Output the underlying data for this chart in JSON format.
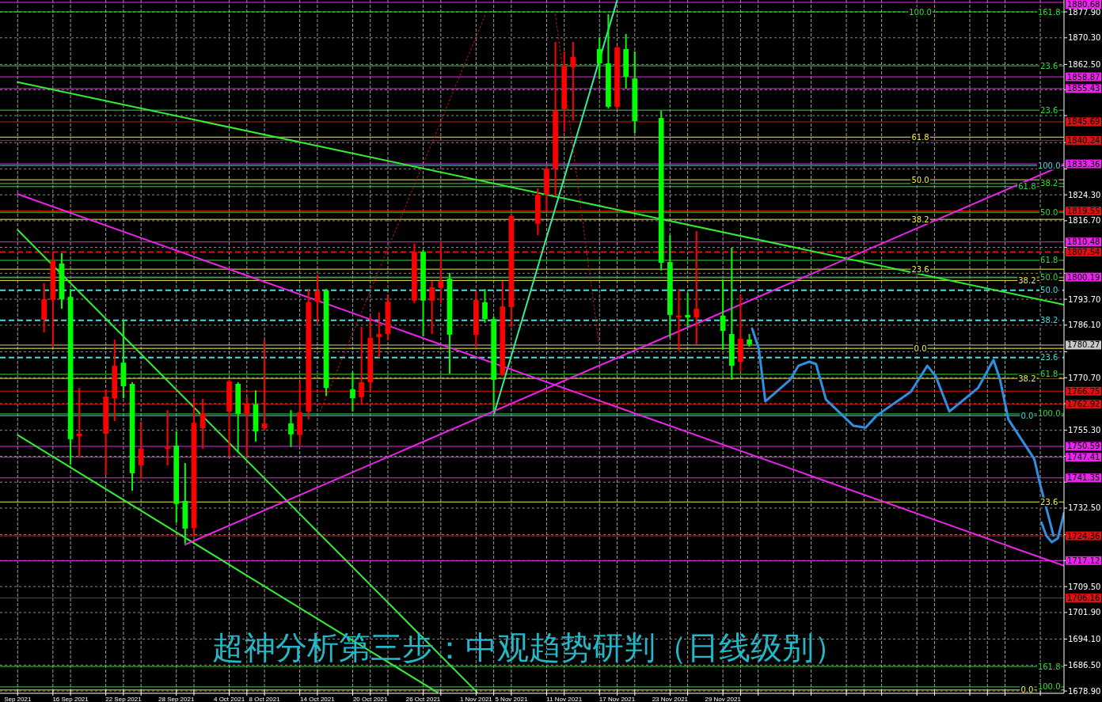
{
  "chart_data": {
    "type": "candlestick",
    "title": "超神分析第三步：中观趋势研判（日线级别）",
    "x": [
      "2021-09-13",
      "2021-09-14",
      "2021-09-15",
      "2021-09-16",
      "2021-09-17",
      "2021-09-20",
      "2021-09-21",
      "2021-09-22",
      "2021-09-23",
      "2021-09-24",
      "2021-09-27",
      "2021-09-28",
      "2021-09-29",
      "2021-09-30",
      "2021-10-01",
      "2021-10-04",
      "2021-10-05",
      "2021-10-06",
      "2021-10-07",
      "2021-10-08",
      "2021-10-11",
      "2021-10-12",
      "2021-10-13",
      "2021-10-14",
      "2021-10-15",
      "2021-10-18",
      "2021-10-19",
      "2021-10-20",
      "2021-10-21",
      "2021-10-22",
      "2021-10-25",
      "2021-10-26",
      "2021-10-27",
      "2021-10-28",
      "2021-10-29",
      "2021-11-01",
      "2021-11-02",
      "2021-11-03",
      "2021-11-04",
      "2021-11-05",
      "2021-11-08",
      "2021-11-09",
      "2021-11-10",
      "2021-11-11",
      "2021-11-12",
      "2021-11-15",
      "2021-11-16",
      "2021-11-17",
      "2021-11-18",
      "2021-11-19",
      "2021-11-22",
      "2021-11-23",
      "2021-11-24",
      "2021-11-25",
      "2021-11-26",
      "2021-11-29",
      "2021-11-30",
      "2021-12-01",
      "2021-12-02"
    ],
    "ohlc": [
      [
        1787.7,
        1798.4,
        1784.0,
        1793.7
      ],
      [
        1793.5,
        1807.2,
        1779.8,
        1804.9
      ],
      [
        1804.2,
        1807.2,
        1790.9,
        1793.7
      ],
      [
        1794.4,
        1796.7,
        1745.2,
        1752.7
      ],
      [
        1753.6,
        1767.7,
        1747.6,
        1754.3
      ],
      [
        1754.3,
        1767.3,
        1742.2,
        1765.2
      ],
      [
        1764.7,
        1781.9,
        1758.0,
        1774.2
      ],
      [
        1775.1,
        1787.5,
        1764.7,
        1768.2
      ],
      [
        1768.9,
        1769.4,
        1737.6,
        1742.7
      ],
      [
        1745.0,
        1757.8,
        1741.1,
        1749.9
      ],
      [
        1749.9,
        1761.2,
        1745.0,
        1750.4
      ],
      [
        1750.8,
        1755.0,
        1728.3,
        1733.7
      ],
      [
        1734.6,
        1745.7,
        1722.1,
        1726.5
      ],
      [
        1726.7,
        1764.7,
        1724.4,
        1757.5
      ],
      [
        1755.9,
        1764.5,
        1749.9,
        1760.3
      ],
      [
        1760.8,
        1770.1,
        1747.6,
        1769.6
      ],
      [
        1768.9,
        1769.4,
        1748.7,
        1760.1
      ],
      [
        1760.1,
        1765.0,
        1747.6,
        1763.1
      ],
      [
        1762.9,
        1767.0,
        1752.0,
        1755.0
      ],
      [
        1755.9,
        1781.7,
        1755.5,
        1757.3
      ],
      [
        1757.3,
        1761.2,
        1750.4,
        1754.1
      ],
      [
        1753.9,
        1769.6,
        1750.8,
        1760.6
      ],
      [
        1760.8,
        1796.7,
        1758.5,
        1792.8
      ],
      [
        1793.0,
        1800.9,
        1786.8,
        1796.3
      ],
      [
        1796.3,
        1796.7,
        1765.4,
        1767.7
      ],
      [
        1767.3,
        1772.4,
        1760.8,
        1764.7
      ],
      [
        1765.0,
        1785.6,
        1763.1,
        1769.4
      ],
      [
        1769.4,
        1788.6,
        1767.0,
        1782.4
      ],
      [
        1782.6,
        1789.8,
        1776.6,
        1783.5
      ],
      [
        1783.5,
        1795.1,
        1781.7,
        1793.0
      ],
      [
        1793.3,
        1810.0,
        1792.6,
        1807.6
      ],
      [
        1807.6,
        1808.1,
        1782.8,
        1793.3
      ],
      [
        1793.3,
        1799.0,
        1783.5,
        1797.2
      ],
      [
        1797.0,
        1810.6,
        1792.6,
        1799.0
      ],
      [
        1799.7,
        1801.4,
        1771.9,
        1783.3
      ],
      [
        1783.3,
        1796.0,
        1779.3,
        1793.5
      ],
      [
        1792.8,
        1796.7,
        1786.8,
        1787.9
      ],
      [
        1787.9,
        1788.6,
        1760.8,
        1770.1
      ],
      [
        1771.7,
        1799.0,
        1771.2,
        1791.6
      ],
      [
        1791.4,
        1818.3,
        1785.6,
        1818.1
      ],
      [
        1815.8,
        1826.2,
        1812.5,
        1824.3
      ],
      [
        1824.3,
        1832.7,
        1819.5,
        1832.0
      ],
      [
        1832.0,
        1869.1,
        1823.9,
        1848.9
      ],
      [
        1849.4,
        1866.3,
        1842.7,
        1862.1
      ],
      [
        1861.7,
        1869.1,
        1846.1,
        1864.7
      ],
      [
        1867.0,
        1870.5,
        1858.2,
        1862.8
      ],
      [
        1862.8,
        1877.2,
        1849.6,
        1850.1
      ],
      [
        1850.1,
        1867.9,
        1849.4,
        1867.5
      ],
      [
        1867.0,
        1871.4,
        1855.4,
        1858.9
      ],
      [
        1858.4,
        1866.3,
        1842.4,
        1845.9
      ],
      [
        1846.8,
        1848.9,
        1802.1,
        1804.4
      ],
      [
        1804.6,
        1812.5,
        1782.4,
        1789.1
      ],
      [
        1788.4,
        1796.7,
        1778.6,
        1788.9
      ],
      [
        1789.1,
        1795.6,
        1785.6,
        1788.4
      ],
      [
        1788.4,
        1813.7,
        1780.5,
        1790.9
      ],
      [
        1788.9,
        1799.5,
        1778.9,
        1784.4
      ],
      [
        1783.5,
        1808.8,
        1770.1,
        1774.2
      ],
      [
        1775.4,
        1794.9,
        1772.4,
        1782.1
      ],
      [
        1781.9,
        1783.5,
        1779.8,
        1780.5
      ]
    ],
    "colors": [
      "#ff0000",
      "#ff0000",
      "#00ff00",
      "#00ff00",
      "#ff0000",
      "#ff0000",
      "#ff0000",
      "#00ff00",
      "#00ff00",
      "#ff0000",
      "#ff0000",
      "#00ff00",
      "#00ff00",
      "#ff0000",
      "#ff0000",
      "#ff0000",
      "#00ff00",
      "#ff0000",
      "#00ff00",
      "#ff0000",
      "#00ff00",
      "#ff0000",
      "#ff0000",
      "#ff0000",
      "#00ff00",
      "#00ff00",
      "#ff0000",
      "#ff0000",
      "#ff0000",
      "#ff0000",
      "#ff0000",
      "#00ff00",
      "#ff0000",
      "#ff0000",
      "#00ff00",
      "#ff0000",
      "#00ff00",
      "#00ff00",
      "#ff0000",
      "#ff0000",
      "#ff0000",
      "#ff0000",
      "#ff0000",
      "#ff0000",
      "#ff0000",
      "#00ff00",
      "#00ff00",
      "#ff0000",
      "#00ff00",
      "#00ff00",
      "#00ff00",
      "#00ff00",
      "#ff0000",
      "#00ff00",
      "#ff0000",
      "#00ff00",
      "#00ff00",
      "#ff0000",
      "#00ff00"
    ],
    "series": [
      {
        "type": "line",
        "color": "#33ee33",
        "x": [
          "2021-09-10",
          "2022-01-06T16:30"
        ],
        "values": [
          1857.3,
          1792.1
        ]
      },
      {
        "type": "line",
        "color": "#33ee33",
        "x": [
          "2021-09-10",
          "2021-11-01T03:00"
        ],
        "values": [
          1814.0,
          1678.5
        ]
      },
      {
        "type": "line",
        "color": "#33ee33",
        "x": [
          "2021-09-10",
          "2021-10-27T15:00"
        ],
        "values": [
          1753.9,
          1678.5
        ]
      },
      {
        "type": "line",
        "color": "#33ee99",
        "x": [
          "2021-11-03T01:30",
          "2021-11-17"
        ],
        "values": [
          1760.3,
          1881.3
        ]
      },
      {
        "type": "line",
        "color": "#ee22ee",
        "x": [
          "2021-09-10",
          "2022-01-06T16:30"
        ],
        "values": [
          1824.5,
          1715.6
        ]
      },
      {
        "type": "line",
        "color": "#ee22ee",
        "x": [
          "2021-09-29",
          "2022-01-06T16:30"
        ],
        "values": [
          1721.8,
          1833.1
        ]
      },
      {
        "type": "line",
        "color": "#cc1111",
        "line_style": "dotted",
        "x": [
          "2021-10-14T07:30",
          "2021-11-02T01:30"
        ],
        "values": [
          1760.8,
          1877.2
        ]
      },
      {
        "type": "line",
        "color": "#cc1111",
        "line_style": "dotted",
        "x": [
          "2021-11-10",
          "2021-11-15"
        ],
        "values": [
          1877.2,
          1779.3
        ]
      },
      {
        "type": "line",
        "color": "#2f8fe0",
        "x": [
          "2021-12-02T07:30",
          "2021-12-03T01:30",
          "2021-12-03T19:30",
          "2021-12-06T15:00",
          "2021-12-07T13:30",
          "2021-12-08T19:30",
          "2021-12-09T13:30",
          "2021-12-10T16:30",
          "2021-12-13T19:30",
          "2021-12-15T04:30",
          "2021-12-16T10:30",
          "2021-12-20T07:30",
          "2021-12-22T04:30",
          "2021-12-23T03:00",
          "2021-12-24T16:30",
          "2021-12-27T22:30",
          "2021-12-29T16:30",
          "2021-12-30T10:30",
          "2021-12-31T09:00",
          "2022-01-03T07:30",
          "2022-01-03T22:30",
          "2022-01-04T21:00",
          "2022-01-05T12:00"
        ],
        "values": [
          1785.1,
          1779.3,
          1763.8,
          1770.1,
          1774.2,
          1775.4,
          1774.7,
          1764.3,
          1756.6,
          1756.1,
          1759.6,
          1766.6,
          1774.2,
          1771.2,
          1760.8,
          1767.7,
          1775.9,
          1770.1,
          1758.5,
          1746.9,
          1739.9,
          1730.6,
          1724.4
        ]
      },
      {
        "type": "line",
        "color": "#2f8fe0",
        "x": [
          "2022-01-04T03:00",
          "2022-01-04T16:30",
          "2022-01-05T07:30",
          "2022-01-06",
          "2022-01-06T16:30"
        ],
        "values": [
          1728.3,
          1724.4,
          1722.5,
          1723.7,
          1731.0
        ]
      }
    ],
    "ref_lines": [
      {
        "axis": "y",
        "value": 1880.68,
        "label": "1880.68",
        "color": "#ee22ee"
      },
      {
        "axis": "y",
        "value": 1858.87,
        "label": "1858.87",
        "color": "#ee22ee"
      },
      {
        "axis": "y",
        "value": 1855.43,
        "label": "1855.43",
        "color": "#ee22ee"
      },
      {
        "axis": "y",
        "value": 1845.69,
        "label": "1845.69",
        "color": "#dd1111"
      },
      {
        "axis": "y",
        "value": 1840.24,
        "label": "1840.24",
        "color": "#dd1111"
      },
      {
        "axis": "y",
        "value": 1833.36,
        "label": "1833.36",
        "color": "#ee22ee"
      },
      {
        "axis": "y",
        "value": 1819.55,
        "label": "1819.55",
        "color": "#dd1111"
      },
      {
        "axis": "y",
        "value": 1810.48,
        "label": "1810.48",
        "color": "#ee22ee"
      },
      {
        "axis": "y",
        "value": 1807.54,
        "label": "1807.54",
        "color": "#dd1111",
        "line_style": "dashed"
      },
      {
        "axis": "y",
        "value": 1800.19,
        "label": "1800.19",
        "color": "#ee22ee"
      },
      {
        "axis": "y",
        "value": 1780.27,
        "label": "1780.27",
        "color": "#c8c8c8"
      },
      {
        "axis": "y",
        "value": 1766.75,
        "label": "1766.75",
        "color": "#dd1111"
      },
      {
        "axis": "y",
        "value": 1762.92,
        "label": "1762.92",
        "color": "#dd1111"
      },
      {
        "axis": "y",
        "value": 1750.59,
        "label": "1750.59",
        "color": "#ee22ee"
      },
      {
        "axis": "y",
        "value": 1747.41,
        "label": "1747.41",
        "color": "#ee22ee"
      },
      {
        "axis": "y",
        "value": 1741.35,
        "label": "1741.35",
        "color": "#ee22ee"
      },
      {
        "axis": "y",
        "value": 1724.36,
        "label": "1724.36",
        "color": "#dd1111"
      },
      {
        "axis": "y",
        "value": 1717.12,
        "label": "1717.12",
        "color": "#ee22ee"
      },
      {
        "axis": "y",
        "value": 1706.16,
        "label": "1706.16",
        "color": "#dd1111"
      },
      {
        "axis": "y",
        "value": 1877.9,
        "color": "#33dd33"
      },
      {
        "axis": "y",
        "value": 1862.1,
        "color": "#33dd33"
      },
      {
        "axis": "y",
        "value": 1849.1,
        "color": "#33dd33"
      },
      {
        "axis": "y",
        "value": 1841.2,
        "color": "#eeee44"
      },
      {
        "axis": "y",
        "value": 1832.9,
        "color": "#44dddd"
      },
      {
        "axis": "y",
        "value": 1828.7,
        "color": "#eeee44"
      },
      {
        "axis": "y",
        "value": 1827.6,
        "color": "#33dd33"
      },
      {
        "axis": "y",
        "value": 1826.7,
        "color": "#33dd33"
      },
      {
        "axis": "y",
        "value": 1819.2,
        "color": "#33dd33"
      },
      {
        "axis": "y",
        "value": 1817.1,
        "color": "#eeee44"
      },
      {
        "axis": "y",
        "value": 1805.1,
        "color": "#33dd33"
      },
      {
        "axis": "y",
        "value": 1802.5,
        "color": "#eeee44"
      },
      {
        "axis": "y",
        "value": 1800.0,
        "color": "#33dd33"
      },
      {
        "axis": "y",
        "value": 1799.2,
        "color": "#eeee44"
      },
      {
        "axis": "y",
        "value": 1796.3,
        "color": "#44dddd",
        "line_style": "dashed"
      },
      {
        "axis": "y",
        "value": 1787.5,
        "color": "#44dddd",
        "line_style": "dashed"
      },
      {
        "axis": "y",
        "value": 1779.3,
        "color": "#eeee44"
      },
      {
        "axis": "y",
        "value": 1776.6,
        "color": "#44dddd",
        "line_style": "dashed"
      },
      {
        "axis": "y",
        "value": 1771.7,
        "color": "#33dd33"
      },
      {
        "axis": "y",
        "value": 1770.5,
        "color": "#eeee44"
      },
      {
        "axis": "y",
        "value": 1760.1,
        "color": "#33dd33"
      },
      {
        "axis": "y",
        "value": 1759.6,
        "color": "#44dddd"
      },
      {
        "axis": "y",
        "value": 1734.3,
        "color": "#eeee44"
      },
      {
        "axis": "y",
        "value": 1686.1,
        "color": "#33dd33"
      },
      {
        "axis": "y",
        "value": 1680.1,
        "color": "#33dd33"
      },
      {
        "axis": "y",
        "value": 1679.2,
        "color": "#eeee44"
      }
    ],
    "annotations": [
      {
        "text": "161.8",
        "x": "2022-01-05",
        "y": 1877.9
      },
      {
        "text": "100.0",
        "x": "2021-12-21T09:30",
        "y": 1877.9
      },
      {
        "text": "23.6",
        "x": "2022-01-05",
        "y": 1862.1
      },
      {
        "text": "23.6",
        "x": "2022-01-05",
        "y": 1849.1
      },
      {
        "text": "61.8",
        "x": "2021-12-21T09:30",
        "y": 1841.2
      },
      {
        "text": "100.0",
        "x": "2022-01-05",
        "y": 1832.9
      },
      {
        "text": "50.0",
        "x": "2021-12-21T09:30",
        "y": 1828.7
      },
      {
        "text": "38.2",
        "x": "2022-01-05",
        "y": 1827.6
      },
      {
        "text": "61.8",
        "x": "2022-01-02T12:00",
        "y": 1826.7
      },
      {
        "text": "50.0",
        "x": "2022-01-05",
        "y": 1819.2
      },
      {
        "text": "38.2",
        "x": "2021-12-21T09:30",
        "y": 1817.1
      },
      {
        "text": "61.8",
        "x": "2022-01-05",
        "y": 1805.1
      },
      {
        "text": "23.6",
        "x": "2021-12-21T09:30",
        "y": 1802.5
      },
      {
        "text": "50.0",
        "x": "2022-01-05",
        "y": 1800.0
      },
      {
        "text": "38.2",
        "x": "2022-01-02T12:00",
        "y": 1799.2
      },
      {
        "text": "50.0",
        "x": "2022-01-05",
        "y": 1796.3
      },
      {
        "text": "38.2",
        "x": "2022-01-05",
        "y": 1787.5
      },
      {
        "text": "0.0",
        "x": "2021-12-21T09:30",
        "y": 1779.3
      },
      {
        "text": "23.6",
        "x": "2022-01-05",
        "y": 1776.6
      },
      {
        "text": "61.8",
        "x": "2022-01-05",
        "y": 1771.7
      },
      {
        "text": "38.2",
        "x": "2022-01-02T12:00",
        "y": 1770.5
      },
      {
        "text": "100.0",
        "x": "2022-01-05",
        "y": 1760.1
      },
      {
        "text": "0.0",
        "x": "2022-01-02T12:00",
        "y": 1759.6
      },
      {
        "text": "23.6",
        "x": "2022-01-05",
        "y": 1734.3
      },
      {
        "text": "161.8",
        "x": "2022-01-05",
        "y": 1686.1
      },
      {
        "text": "100.0",
        "x": "2022-01-05",
        "y": 1680.1
      },
      {
        "text": "0.0",
        "x": "2022-01-02T12:00",
        "y": 1679.2
      }
    ],
    "xlim": [
      "2021-09-08",
      "2022-01-06T16:30"
    ],
    "ylim": [
      1678.23,
      1881.38
    ],
    "xticks": [
      {
        "value": "2021-09-10",
        "label": "Sep 2021"
      },
      {
        "value": "2021-09-14",
        "label": null
      },
      {
        "value": "2021-09-16",
        "label": "16 Sep 2021"
      },
      {
        "value": "2021-09-20",
        "label": null
      },
      {
        "value": "2021-09-22",
        "label": "22 Sep 2021"
      },
      {
        "value": "2021-09-24",
        "label": null
      },
      {
        "value": "2021-09-28",
        "label": "28 Sep 2021"
      },
      {
        "value": "2021-09-30",
        "label": null
      },
      {
        "value": "2021-10-04",
        "label": "4 Oct 2021"
      },
      {
        "value": "2021-10-06",
        "label": null
      },
      {
        "value": "2021-10-08",
        "label": "8 Oct 2021"
      },
      {
        "value": "2021-10-12",
        "label": null
      },
      {
        "value": "2021-10-14",
        "label": "14 Oct 2021"
      },
      {
        "value": "2021-10-18",
        "label": null
      },
      {
        "value": "2021-10-20",
        "label": "20 Oct 2021"
      },
      {
        "value": "2021-10-22",
        "label": null
      },
      {
        "value": "2021-10-26",
        "label": "26 Oct 2021"
      },
      {
        "value": "2021-10-28",
        "label": null
      },
      {
        "value": "2021-11-01",
        "label": "1 Nov 2021"
      },
      {
        "value": "2021-11-03",
        "label": null
      },
      {
        "value": "2021-11-05",
        "label": "5 Nov 2021"
      },
      {
        "value": "2021-11-09",
        "label": null
      },
      {
        "value": "2021-11-11",
        "label": "11 Nov 2021"
      },
      {
        "value": "2021-11-15",
        "label": null
      },
      {
        "value": "2021-11-17",
        "label": "17 Nov 2021"
      },
      {
        "value": "2021-11-19",
        "label": null
      },
      {
        "value": "2021-11-23",
        "label": "23 Nov 2021"
      },
      {
        "value": "2021-11-25",
        "label": null
      },
      {
        "value": "2021-11-29",
        "label": "29 Nov 2021"
      },
      {
        "value": "2021-12-01",
        "label": null
      },
      {
        "value": "2021-12-03",
        "label": null
      },
      {
        "value": "2021-12-07",
        "label": null
      },
      {
        "value": "2021-12-09",
        "label": null
      },
      {
        "value": "2021-12-13",
        "label": null
      },
      {
        "value": "2021-12-15",
        "label": null
      },
      {
        "value": "2021-12-17",
        "label": null
      },
      {
        "value": "2021-12-21",
        "label": null
      },
      {
        "value": "2021-12-23",
        "label": null
      },
      {
        "value": "2021-12-27",
        "label": null
      },
      {
        "value": "2021-12-29",
        "label": null
      },
      {
        "value": "2021-12-31",
        "label": null
      },
      {
        "value": "2022-01-04",
        "label": null
      }
    ],
    "yticks": [
      {
        "value": 1877.9,
        "label": "1877.90"
      },
      {
        "value": 1870.3,
        "label": "1870.30"
      },
      {
        "value": 1862.5,
        "label": "1862.50"
      },
      {
        "value": 1855.1,
        "label": null
      },
      {
        "value": 1847.5,
        "label": null
      },
      {
        "value": 1839.6,
        "label": null
      },
      {
        "value": 1831.9,
        "label": null
      },
      {
        "value": 1824.3,
        "label": "1824.30"
      },
      {
        "value": 1816.7,
        "label": "1816.70"
      },
      {
        "value": 1808.9,
        "label": null
      },
      {
        "value": 1801.3,
        "label": null
      },
      {
        "value": 1793.7,
        "label": "1793.70"
      },
      {
        "value": 1786.1,
        "label": "1786.10"
      },
      {
        "value": 1778.3,
        "label": null
      },
      {
        "value": 1770.7,
        "label": "1770.70"
      },
      {
        "value": 1763.1,
        "label": null
      },
      {
        "value": 1755.3,
        "label": "1755.30"
      },
      {
        "value": 1747.7,
        "label": null
      },
      {
        "value": 1740.1,
        "label": null
      },
      {
        "value": 1732.5,
        "label": "1732.50"
      },
      {
        "value": 1724.7,
        "label": null
      },
      {
        "value": 1717.1,
        "label": null
      },
      {
        "value": 1709.5,
        "label": "1709.50"
      },
      {
        "value": 1701.9,
        "label": "1701.90"
      },
      {
        "value": 1694.1,
        "label": "1694.10"
      },
      {
        "value": 1686.5,
        "label": "1686.50"
      },
      {
        "value": 1678.9,
        "label": "1678.90"
      }
    ],
    "grid": true
  }
}
